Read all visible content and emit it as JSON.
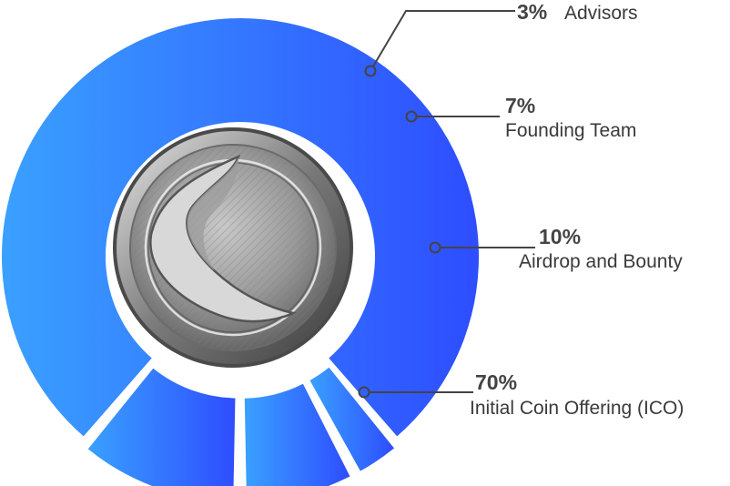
{
  "chart_data": {
    "type": "pie",
    "style": "donut",
    "categories": [
      "Initial Coin Offering (ICO)",
      "Advisors",
      "Founding Team",
      "Airdrop and Bounty"
    ],
    "values": [
      70,
      3,
      7,
      10
    ],
    "value_labels": [
      "70%",
      "3%",
      "7%",
      "10%"
    ],
    "colors": {
      "gradient_start": "#3aa0ff",
      "gradient_end": "#2e4dff",
      "leader_line": "#444444"
    },
    "center_image": "coin-logo",
    "legend": "none"
  }
}
